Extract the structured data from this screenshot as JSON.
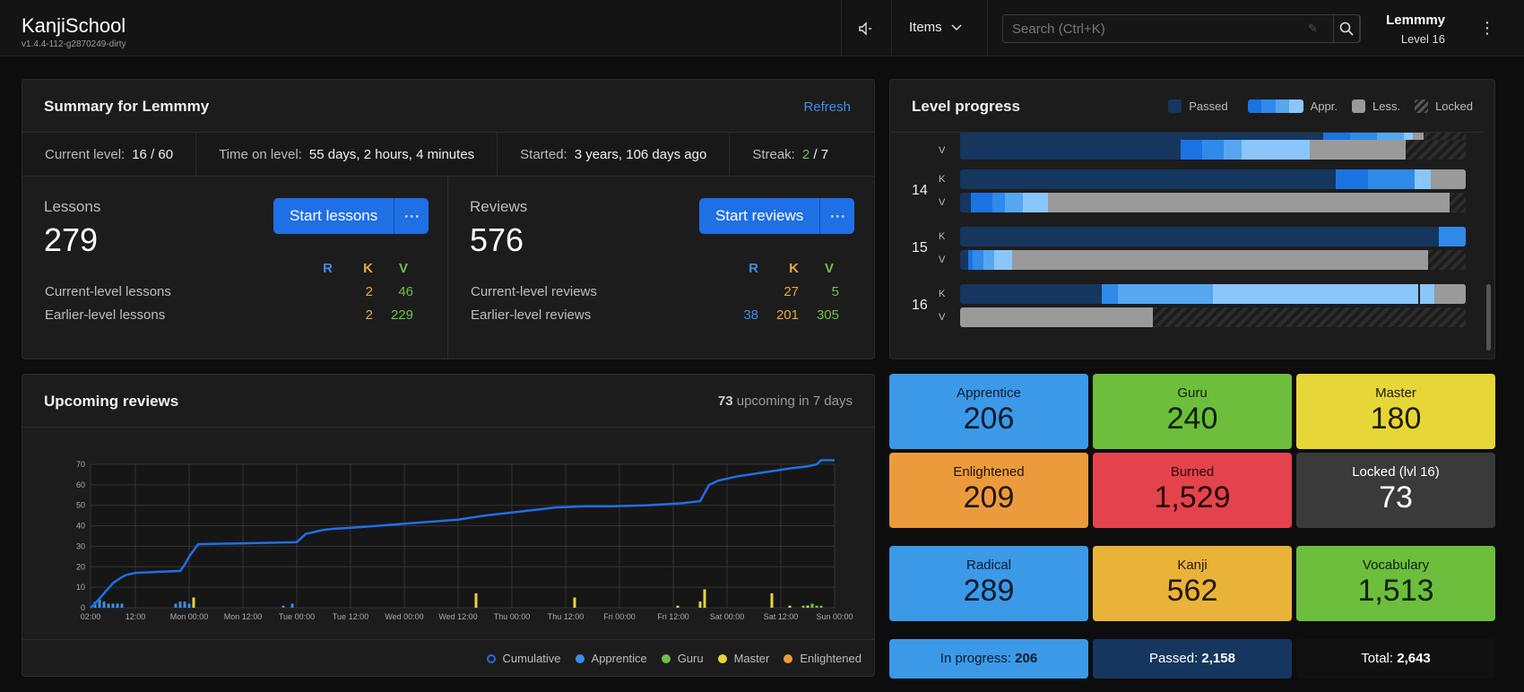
{
  "header": {
    "app_name": "KanjiSchool",
    "version": "v1.4.4-112-g2870249-dirty",
    "items_label": "Items",
    "search_placeholder": "Search (Ctrl+K)",
    "username": "Lemmmy",
    "level": "Level 16",
    "icons": [
      "speaker-icon",
      "chevron-down-icon",
      "pencil-icon",
      "search-icon",
      "more-vertical-icon"
    ]
  },
  "summary": {
    "title": "Summary for Lemmmy",
    "refresh": "Refresh",
    "current_level_label": "Current level:",
    "current_level": "16 / 60",
    "time_on_level_label": "Time on level:",
    "time_on_level": "55 days, 2 hours, 4 minutes",
    "started_label": "Started:",
    "started": "3 years, 106 days ago",
    "streak_label": "Streak:",
    "streak_current": "2",
    "streak_total": "/ 7",
    "lessons": {
      "label": "Lessons",
      "count": "279",
      "button": "Start lessons",
      "more": "⋯",
      "col_r": "R",
      "col_k": "K",
      "col_v": "V",
      "row1_label": "Current-level lessons",
      "row1_r": "",
      "row1_k": "2",
      "row1_v": "46",
      "row2_label": "Earlier-level lessons",
      "row2_r": "",
      "row2_k": "2",
      "row2_v": "229"
    },
    "reviews": {
      "label": "Reviews",
      "count": "576",
      "button": "Start reviews",
      "more": "⋯",
      "col_r": "R",
      "col_k": "K",
      "col_v": "V",
      "row1_label": "Current-level reviews",
      "row1_r": "",
      "row1_k": "27",
      "row1_v": "5",
      "row2_label": "Earlier-level reviews",
      "row2_r": "38",
      "row2_k": "201",
      "row2_v": "305"
    }
  },
  "level_progress": {
    "title": "Level progress",
    "legend": {
      "passed": "Passed",
      "appr": "Appr.",
      "less": "Less.",
      "locked": "Locked"
    },
    "kanji_label": "K",
    "vocab_label": "V",
    "levels": [
      "14",
      "15",
      "16"
    ],
    "colors": {
      "passed": "#15365e",
      "appr1": "#1a73e0",
      "appr2": "#2f8aea",
      "appr3": "#56a6f0",
      "appr4": "#8ac6fa",
      "lesson": "#9a9a9a"
    }
  },
  "upcoming": {
    "title": "Upcoming reviews",
    "count": "73",
    "suffix": "upcoming in 7 days",
    "legend": [
      "Cumulative",
      "Apprentice",
      "Guru",
      "Master",
      "Enlightened"
    ]
  },
  "chart_data": {
    "type": "bar",
    "title": "Upcoming reviews",
    "x_tick_labels": [
      "02:00",
      "12:00",
      "Mon 00:00",
      "Mon 12:00",
      "Tue 00:00",
      "Tue 12:00",
      "Wed 00:00",
      "Wed 12:00",
      "Thu 00:00",
      "Thu 12:00",
      "Fri 00:00",
      "Fri 12:00",
      "Sat 00:00",
      "Sat 12:00",
      "Sun 00:00"
    ],
    "x_range_hours": [
      0,
      166
    ],
    "ylim": [
      0,
      70
    ],
    "y_ticks": [
      0,
      10,
      20,
      30,
      40,
      50,
      60,
      70
    ],
    "grid": true,
    "cumulative": {
      "name": "Cumulative",
      "x_hours": [
        0,
        1,
        3,
        5,
        7,
        8,
        10,
        20,
        21,
        22,
        23,
        24,
        46,
        47,
        48,
        50,
        52,
        54,
        58,
        64,
        70,
        76,
        82,
        88,
        96,
        104,
        110,
        116,
        124,
        132,
        136,
        137,
        138,
        140,
        144,
        150,
        156,
        160,
        162,
        163,
        166
      ],
      "y": [
        0,
        2,
        7,
        12,
        15,
        16,
        17,
        18,
        21,
        25,
        28,
        31,
        32,
        34,
        36,
        37,
        38,
        38.5,
        39,
        40,
        41,
        42,
        43,
        45,
        47,
        49,
        49.5,
        49.5,
        50,
        51,
        52,
        56,
        60,
        62,
        64,
        66,
        68,
        69,
        70,
        72,
        72
      ]
    },
    "series": [
      {
        "name": "Apprentice",
        "color": "#3a8fe6",
        "x_hours": [
          1,
          2,
          3,
          4,
          5,
          6,
          7,
          19,
          20,
          21,
          22,
          43,
          45
        ],
        "values": [
          3,
          4,
          3,
          2,
          2,
          2,
          2,
          2,
          3,
          3,
          2,
          1,
          2
        ]
      },
      {
        "name": "Guru",
        "color": "#6fc04a",
        "x_hours": [
          159,
          160,
          161,
          162,
          163
        ],
        "values": [
          1,
          1,
          2,
          1,
          1
        ]
      },
      {
        "name": "Master",
        "color": "#e8d43a",
        "x_hours": [
          23,
          86,
          108,
          131,
          136,
          137,
          152,
          156,
          160
        ],
        "values": [
          5,
          7,
          5,
          1,
          3,
          9,
          7,
          1,
          1
        ]
      },
      {
        "name": "Enlightened",
        "color": "#ee9a3c",
        "x_hours": [],
        "values": []
      }
    ]
  },
  "srs": {
    "apprentice": {
      "label": "Apprentice",
      "value": "206"
    },
    "guru": {
      "label": "Guru",
      "value": "240"
    },
    "master": {
      "label": "Master",
      "value": "180"
    },
    "enlightened": {
      "label": "Enlightened",
      "value": "209"
    },
    "burned": {
      "label": "Burned",
      "value": "1,529"
    },
    "locked": {
      "label": "Locked (lvl 16)",
      "value": "73"
    },
    "radical": {
      "label": "Radical",
      "value": "289"
    },
    "kanji": {
      "label": "Kanji",
      "value": "562"
    },
    "vocabulary": {
      "label": "Vocabulary",
      "value": "1,513"
    },
    "in_progress_label": "In progress:",
    "in_progress": "206",
    "passed_label": "Passed:",
    "passed": "2,158",
    "total_label": "Total:",
    "total": "2,643"
  }
}
